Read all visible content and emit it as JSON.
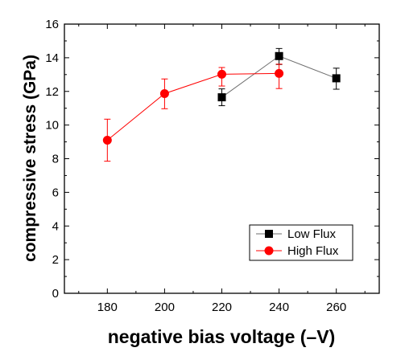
{
  "chart_data": {
    "type": "scatter",
    "xlabel": "negative bias voltage (–V)",
    "ylabel": "compressive stress (GPa)",
    "xlim": [
      165,
      275
    ],
    "ylim": [
      0,
      16
    ],
    "xticks": [
      180,
      200,
      220,
      240,
      260
    ],
    "yticks": [
      0,
      2,
      4,
      6,
      8,
      10,
      12,
      14,
      16
    ],
    "legend_position": "bottom-right",
    "grid": false,
    "series": [
      {
        "name": "Low Flux",
        "color": "#000000",
        "line_color": "#6e6e6e",
        "marker": "square",
        "x": [
          220,
          240,
          260
        ],
        "y": [
          11.65,
          14.1,
          12.78
        ],
        "err_low": [
          0.5,
          0.5,
          0.65
        ],
        "err_high": [
          0.5,
          0.45,
          0.6
        ]
      },
      {
        "name": "High Flux",
        "color": "#ff0000",
        "line_color": "#ff0000",
        "marker": "circle",
        "x": [
          180,
          200,
          220,
          240
        ],
        "y": [
          9.1,
          11.87,
          13.02,
          13.07
        ],
        "err_low": [
          1.25,
          0.9,
          0.7,
          0.9
        ],
        "err_high": [
          1.25,
          0.87,
          0.4,
          0.55
        ]
      }
    ]
  }
}
